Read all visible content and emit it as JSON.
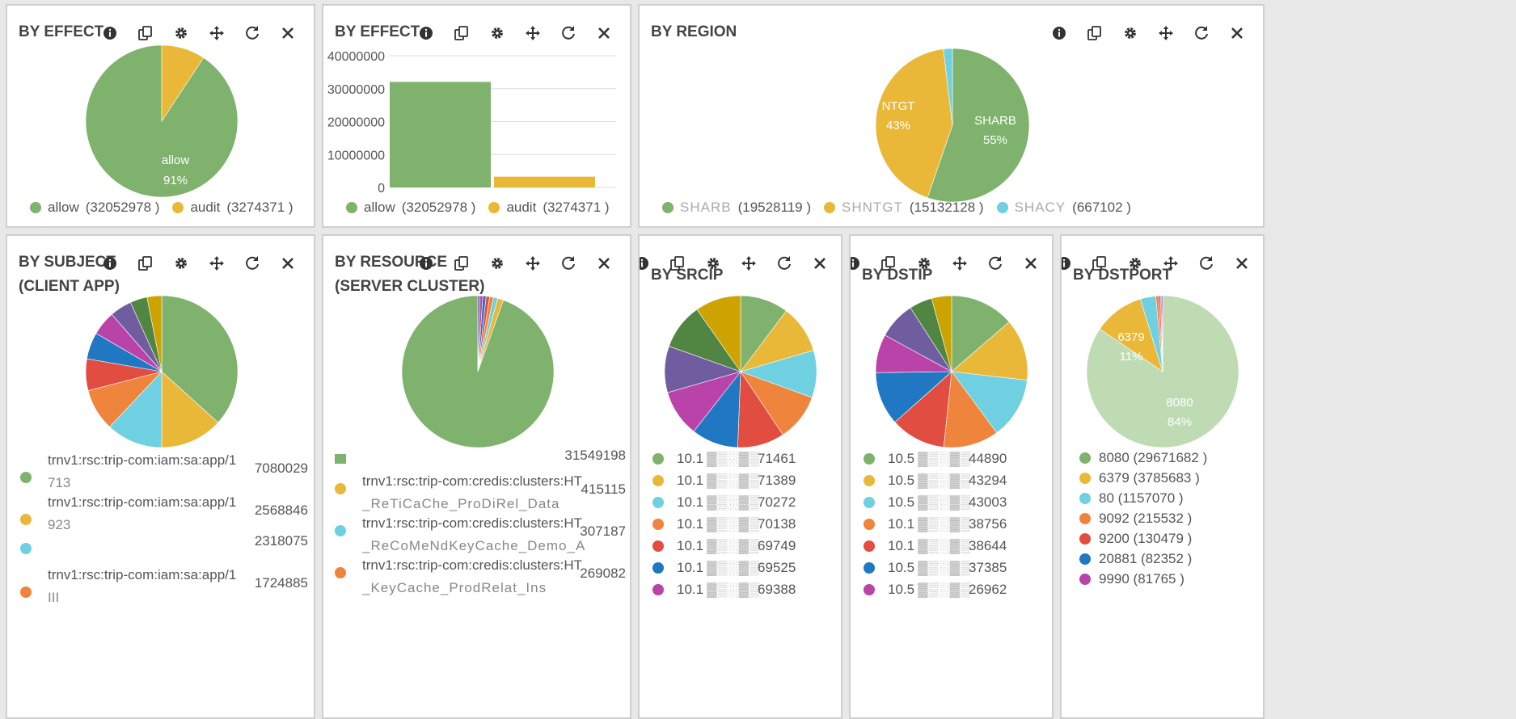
{
  "colors": {
    "green": "#7eb26d",
    "yellow": "#eab839",
    "cyan": "#6ed0e0",
    "orange": "#ef843c",
    "red": "#e24d42",
    "blue": "#1f78c1",
    "purple": "#ba43a9",
    "violet": "#705da0",
    "dkgreen": "#508642",
    "gold": "#cca300",
    "pale_green": "#bfdbb3"
  },
  "panels": {
    "effect_pie": {
      "title": "BY EFFECT",
      "slice_label": "allow",
      "slice_pct": "91%",
      "legend": [
        {
          "name": "allow",
          "count": "(32052978 )",
          "color": "#7eb26d"
        },
        {
          "name": "audit",
          "count": "(3274371 )",
          "color": "#eab839"
        }
      ]
    },
    "effect_bar": {
      "title": "BY EFFECT",
      "legend": [
        {
          "name": "allow",
          "count": "(32052978 )",
          "color": "#7eb26d"
        },
        {
          "name": "audit",
          "count": "(3274371 )",
          "color": "#eab839"
        }
      ]
    },
    "region": {
      "title": "BY REGION",
      "label_a": "SHARB",
      "pct_a": "55%",
      "label_b": "NTGT",
      "pct_b": "43%",
      "legend": [
        {
          "name": "SHARB",
          "count": "(19528119 )",
          "color": "#7eb26d"
        },
        {
          "name": "SHNTGT",
          "count": "(15132128 )",
          "color": "#eab839"
        },
        {
          "name": "SHACY",
          "count": "(667102 )",
          "color": "#6ed0e0"
        }
      ]
    },
    "subject": {
      "title1": "BY SUBJECT",
      "title2": "(CLIENT APP)",
      "rows": [
        {
          "label": "trnv1:rsc:trip-com:iam:sa:app/1",
          "sub": "713",
          "count": "7080029",
          "color": "#7eb26d"
        },
        {
          "label": "trnv1:rsc:trip-com:iam:sa:app/1",
          "sub": "923",
          "count": "2568846",
          "color": "#eab839"
        },
        {
          "label": "",
          "sub": "",
          "count": "2318075",
          "color": "#6ed0e0"
        },
        {
          "label": "trnv1:rsc:trip-com:iam:sa:app/1",
          "sub": "III",
          "count": "1724885",
          "color": "#ef843c"
        }
      ]
    },
    "resource": {
      "title1": "BY RESOURCE",
      "title2": "(SERVER CLUSTER)",
      "rows": [
        {
          "label": "",
          "sub": "",
          "count": "31549198",
          "color": "#7eb26d"
        },
        {
          "label": "trnv1:rsc:trip-com:credis:clusters:HT",
          "sub": "_ReTiCaChe_ProDiRel_Data",
          "count": "415115",
          "color": "#eab839"
        },
        {
          "label": "trnv1:rsc:trip-com:credis:clusters:HT",
          "sub": "_ReCoMeNdKeyCache_Demo_A",
          "count": "307187",
          "color": "#6ed0e0"
        },
        {
          "label": "trnv1:rsc:trip-com:credis:clusters:HT",
          "sub": "_KeyCache_ProdRelat_Ins",
          "count": "269082",
          "color": "#ef843c"
        }
      ]
    },
    "srcip": {
      "title": "BY SRCIP",
      "rows": [
        {
          "ip": "10.1",
          "count": "71461",
          "color": "#7eb26d"
        },
        {
          "ip": "10.1",
          "count": "71389",
          "color": "#eab839"
        },
        {
          "ip": "10.1",
          "count": "70272",
          "color": "#6ed0e0"
        },
        {
          "ip": "10.1",
          "count": "70138",
          "color": "#ef843c"
        },
        {
          "ip": "10.1",
          "count": "69749",
          "color": "#e24d42"
        },
        {
          "ip": "10.1",
          "count": "69525",
          "color": "#1f78c1"
        },
        {
          "ip": "10.1",
          "count": "69388",
          "color": "#ba43a9"
        }
      ]
    },
    "dstip": {
      "title": "BY DSTIP",
      "rows": [
        {
          "ip": "10.5",
          "count": "44890",
          "color": "#7eb26d"
        },
        {
          "ip": "10.5",
          "count": "43294",
          "color": "#eab839"
        },
        {
          "ip": "10.5",
          "count": "43003",
          "color": "#6ed0e0"
        },
        {
          "ip": "10.1",
          "count": "38756",
          "color": "#ef843c"
        },
        {
          "ip": "10.1",
          "count": "38644",
          "color": "#e24d42"
        },
        {
          "ip": "10.5",
          "count": "37385",
          "color": "#1f78c1"
        },
        {
          "ip": "10.5",
          "count": "26962",
          "color": "#ba43a9"
        }
      ]
    },
    "dstport": {
      "title": "BY DSTPORT",
      "label_a": "8080",
      "pct_a": "84%",
      "label_b": "6379",
      "pct_b": "11%",
      "rows": [
        {
          "text": "8080 (29671682 )",
          "color": "#7eb26d"
        },
        {
          "text": "6379 (3785683 )",
          "color": "#eab839"
        },
        {
          "text": "80 (1157070 )",
          "color": "#6ed0e0"
        },
        {
          "text": "9092 (215532 )",
          "color": "#ef843c"
        },
        {
          "text": "9200 (130479 )",
          "color": "#e24d42"
        },
        {
          "text": "20881 (82352 )",
          "color": "#1f78c1"
        },
        {
          "text": "9990 (81765 )",
          "color": "#ba43a9"
        }
      ]
    }
  },
  "chart_data": [
    {
      "type": "pie",
      "title": "BY EFFECT",
      "categories": [
        "allow",
        "audit"
      ],
      "values": [
        32052978,
        3274371
      ]
    },
    {
      "type": "bar",
      "title": "BY EFFECT",
      "categories": [
        "allow",
        "audit"
      ],
      "values": [
        32052978,
        3274371
      ],
      "ylim": [
        0,
        40000000
      ],
      "yticks": [
        "40000000",
        "30000000",
        "20000000",
        "10000000",
        "0"
      ]
    },
    {
      "type": "pie",
      "title": "BY REGION",
      "categories": [
        "SHARB",
        "SHNTGT",
        "SHACY"
      ],
      "values": [
        19528119,
        15132128,
        667102
      ]
    },
    {
      "type": "pie",
      "title": "BY SUBJECT (CLIENT APP)",
      "values": [
        7080029,
        2568846,
        2318075,
        1724885,
        1300000,
        1100000,
        1000000,
        900000,
        700000,
        600000
      ]
    },
    {
      "type": "pie",
      "title": "BY RESOURCE (SERVER CLUSTER)",
      "values": [
        31549198,
        415115,
        307187,
        269082,
        250000,
        230000,
        200000,
        150000
      ]
    },
    {
      "type": "pie",
      "title": "BY SRCIP",
      "values": [
        71461,
        71389,
        70272,
        70138,
        69749,
        69525,
        69388,
        69000,
        68500,
        68000
      ]
    },
    {
      "type": "pie",
      "title": "BY DSTIP",
      "values": [
        44890,
        43294,
        43003,
        38756,
        38644,
        37385,
        26962,
        26000,
        16000,
        14000
      ]
    },
    {
      "type": "pie",
      "title": "BY DSTPORT",
      "categories": [
        "8080",
        "6379",
        "80",
        "9092",
        "9200",
        "20881",
        "9990"
      ],
      "values": [
        29671682,
        3785683,
        1157070,
        215532,
        130479,
        82352,
        81765
      ]
    }
  ]
}
